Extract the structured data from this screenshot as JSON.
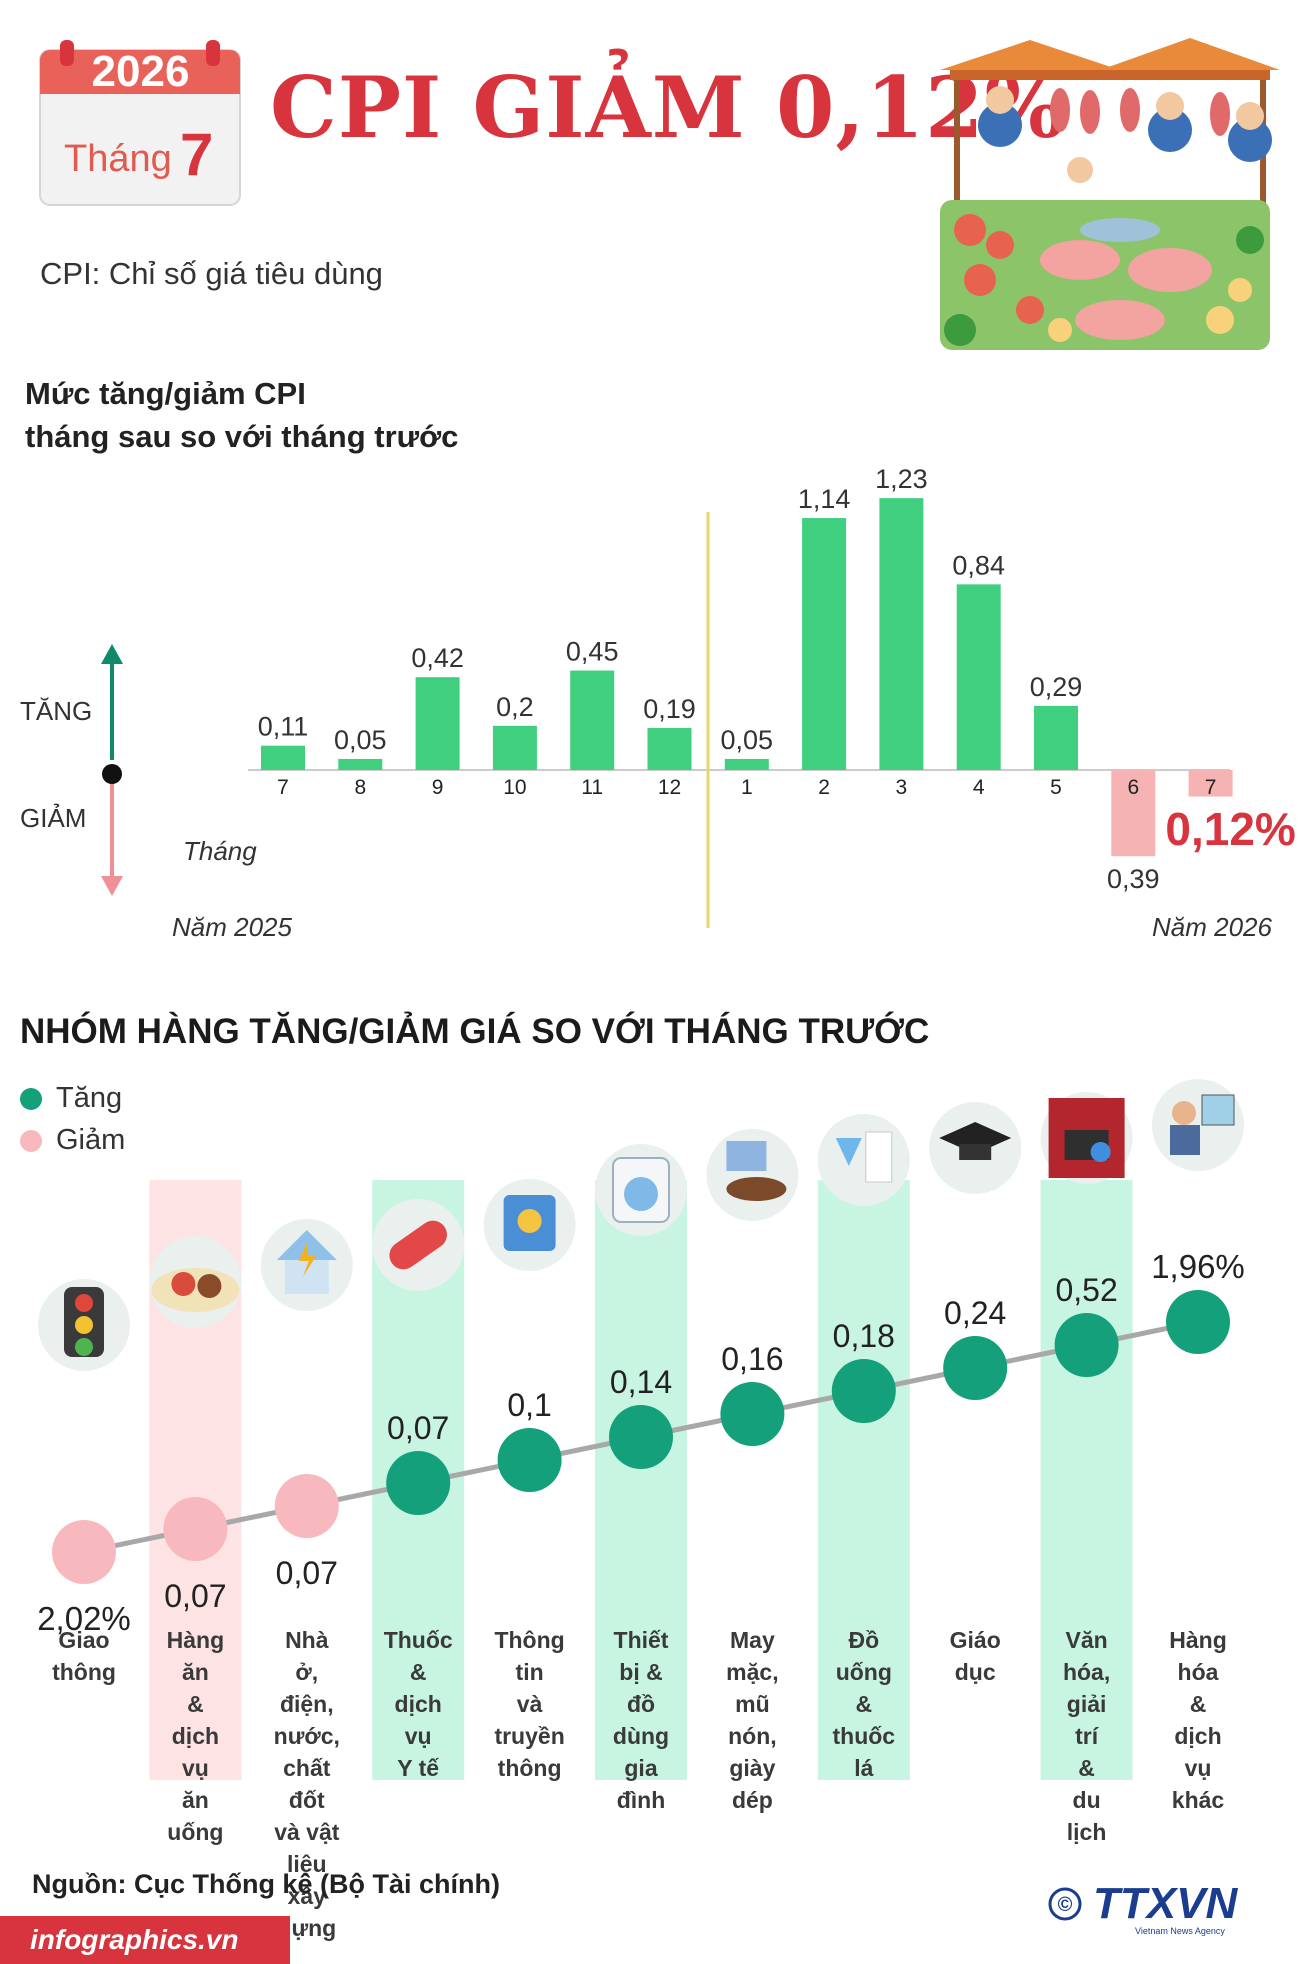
{
  "header": {
    "year": "2026",
    "month_label": "Tháng",
    "month_number": "7",
    "title": "CPI GIẢM 0,12%",
    "subtitle": "CPI: Chỉ số giá tiêu dùng"
  },
  "chart_data": [
    {
      "type": "bar",
      "title": "Mức tăng/giảm CPI\ntháng sau so với tháng trước",
      "xlabel": "Tháng",
      "up_label": "TĂNG",
      "down_label": "GIẢM",
      "year_labels": [
        "Năm 2025",
        "Năm 2026"
      ],
      "categories": [
        "7",
        "8",
        "9",
        "10",
        "11",
        "12",
        "1",
        "2",
        "3",
        "4",
        "5",
        "6",
        "7"
      ],
      "values": [
        0.11,
        0.05,
        0.42,
        0.2,
        0.45,
        0.19,
        0.05,
        1.14,
        1.23,
        0.84,
        0.29,
        -0.39,
        -0.12
      ],
      "value_labels": [
        "0,11",
        "0,05",
        "0,42",
        "0,2",
        "0,45",
        "0,19",
        "0,05",
        "1,14",
        "1,23",
        "0,84",
        "0,29",
        "0,39",
        "0,12%"
      ],
      "colors": {
        "increase": "#3fcf7f",
        "decrease": "#f5b3b3",
        "highlight": "#d8343e",
        "axis_up": "#0f8a6a",
        "axis_down": "#f08f97",
        "year_divider": "#e7d66a"
      }
    },
    {
      "type": "scatter",
      "title": "NHÓM HÀNG TĂNG/GIẢM GIÁ SO VỚI THÁNG TRƯỚC",
      "legend": [
        {
          "name": "Tăng",
          "color": "#13a07a"
        },
        {
          "name": "Giảm",
          "color": "#f7b9bd"
        }
      ],
      "categories": [
        "Giao\nthông",
        "Hàng ăn\n& dịch vụ\năn uống",
        "Nhà ở,\nđiện,\nnước,\nchất đốt\nvà vật liệu\nxây dựng",
        "Thuốc &\ndịch vụ\nY tế",
        "Thông tin\nvà\ntruyền\nthông",
        "Thiết bị &\nđồ dùng\ngia đình",
        "May mặc,\nmũ nón,\ngiày dép",
        "Đồ uống\n&\nthuốc lá",
        "Giáo dục",
        "Văn hóa,\ngiải trí\n& du lịch",
        "Hàng hóa\n& dịch vụ\nkhác"
      ],
      "icons": [
        "traffic-light-icon",
        "food-plate-icon",
        "house-utilities-icon",
        "medicine-icon",
        "media-icon",
        "washing-machine-icon",
        "clothing-shoes-icon",
        "drinks-cigarettes-icon",
        "graduation-cap-icon",
        "cinema-icon",
        "barber-icon"
      ],
      "values": [
        -2.02,
        -0.07,
        -0.07,
        0.07,
        0.1,
        0.14,
        0.16,
        0.18,
        0.24,
        0.52,
        1.96
      ],
      "value_labels": [
        "2,02%",
        "0,07",
        "0,07",
        "0,07",
        "0,1",
        "0,14",
        "0,16",
        "0,18",
        "0,24",
        "0,52",
        "1,96%"
      ],
      "highlighted_columns": [
        1,
        3,
        5,
        7,
        9
      ]
    }
  ],
  "footer": {
    "source": "Nguồn: Cục Thống kê (Bộ Tài chính)",
    "site": "infographics.vn",
    "brand": "TTXVN",
    "brand_sub": "Vietnam News Agency",
    "copyright": "©"
  }
}
